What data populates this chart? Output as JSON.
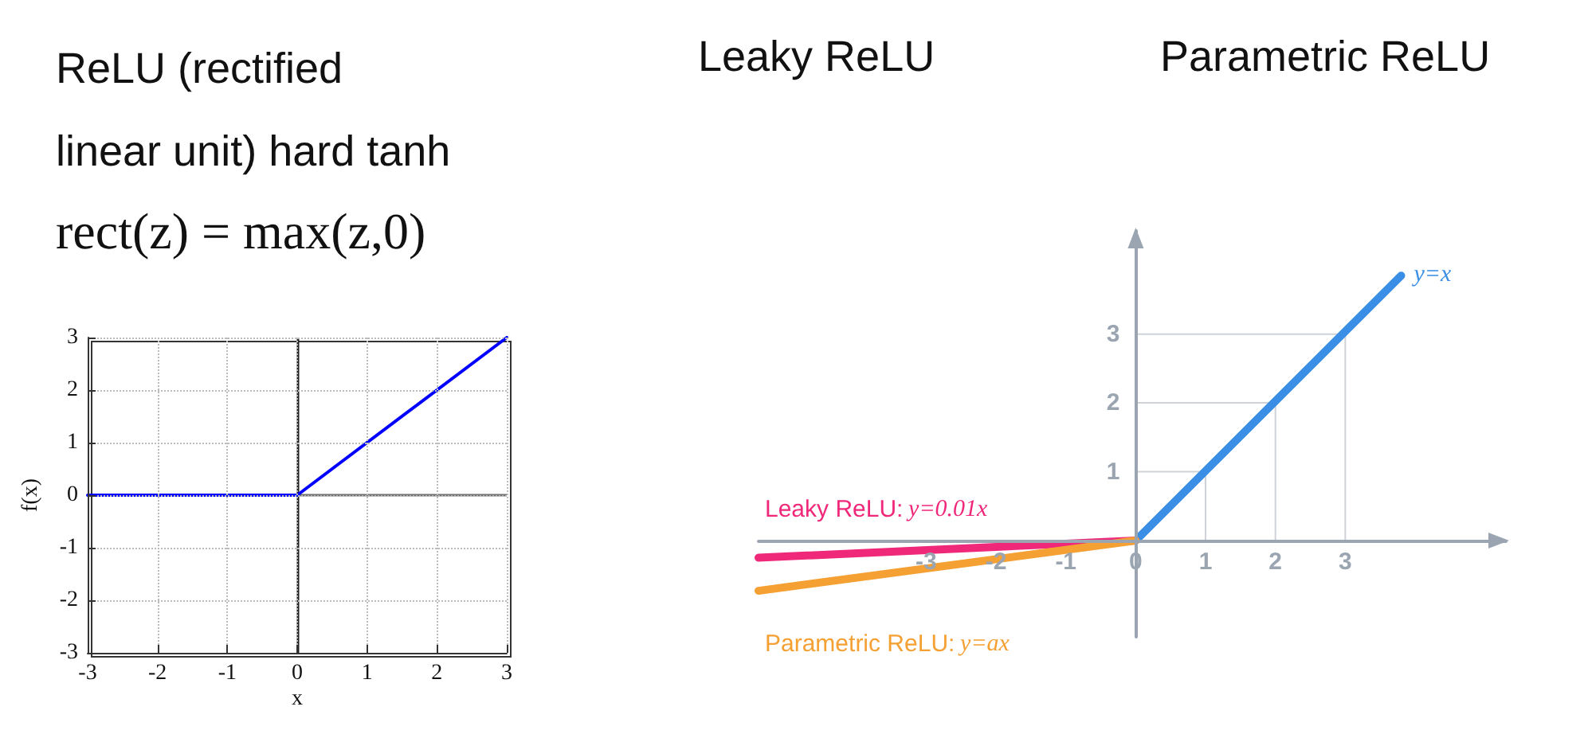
{
  "chart_data": [
    {
      "type": "line",
      "title": "ReLU (rectified linear unit) hard tanh",
      "subtitle": "rect(z) = max(z,0)",
      "xlabel": "x",
      "ylabel": "f(x)",
      "xlim": [
        -3,
        3
      ],
      "ylim": [
        -3,
        3
      ],
      "xticks": [
        -3,
        -2,
        -1,
        0,
        1,
        2,
        3
      ],
      "yticks": [
        -3,
        -2,
        -1,
        0,
        1,
        2,
        3
      ],
      "grid": true,
      "marker": "none",
      "series": [
        {
          "color": "#0000ff",
          "x": [
            -3,
            0,
            3
          ],
          "values": [
            0,
            0,
            3
          ]
        }
      ],
      "ref_lines": [
        {
          "axis": "x",
          "value": 0,
          "color": "#222222"
        },
        {
          "axis": "y",
          "value": 0,
          "color": "#707070"
        }
      ]
    },
    {
      "type": "line",
      "annotations": [
        "Leaky ReLU",
        "Parametric ReLU"
      ],
      "xlim": [
        -5.4,
        5.3
      ],
      "ylim": [
        -1.4,
        4.5
      ],
      "xticks": [
        -3,
        -2,
        -1,
        0,
        1,
        2,
        3
      ],
      "yticks": [
        1,
        2,
        3
      ],
      "marker": "none",
      "series": [
        {
          "name": "y=x",
          "color": "#3a8ee6",
          "x": [
            0,
            3.8
          ],
          "values": [
            0,
            3.85
          ]
        },
        {
          "name": "Leaky ReLU: y=0.01x",
          "color": "#f0287a",
          "x": [
            -5.4,
            0
          ],
          "values": [
            -0.25,
            0
          ]
        },
        {
          "name": "Parametric ReLU: y=ax",
          "color": "#f5a033",
          "x": [
            -5.4,
            0
          ],
          "values": [
            -0.73,
            0
          ]
        }
      ]
    }
  ]
}
